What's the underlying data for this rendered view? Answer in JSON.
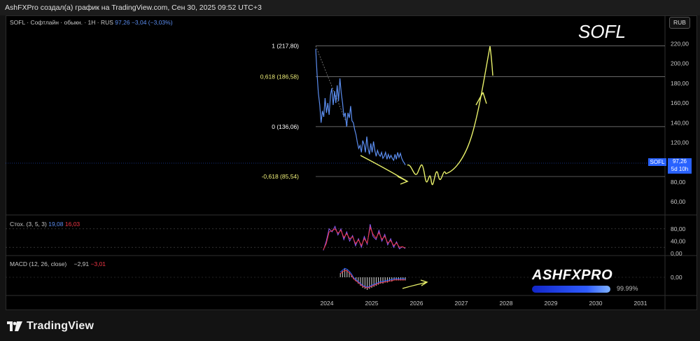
{
  "header": {
    "caption": "AshFXPro создал(а) график на TradingView.com, Сен 30, 2025 09:52 UTC+3"
  },
  "symbol_legend": {
    "label": "SOFL · Софтлайн · обыкн. · 1Н · RUS",
    "price": "97,26",
    "change": "−3,04 (−3,03%)"
  },
  "currency_button": "RUB",
  "title_overlay": "SOFL",
  "price_tag": {
    "symbol": "SOFL",
    "price": "97,26",
    "countdown": "5d 10h"
  },
  "stoch_legend": {
    "label": "Стох. (3, 5, 3)",
    "k": "19,08",
    "d": "16,03"
  },
  "macd_legend": {
    "label": "MACD (12, 26, close)",
    "v1": "−2,91",
    "v2": "−3,01"
  },
  "brand": {
    "name": "ASHFXPRO",
    "percent": "99.99%"
  },
  "footer": {
    "logo_text": "TradingView"
  },
  "colors": {
    "price_line": "#5b8def",
    "fib_extension": "#f0f07a",
    "forecast": "#e8f06a",
    "stoch_k": "#8b5cf6",
    "stoch_d": "#f23645"
  },
  "chart_data": [
    {
      "type": "line",
      "panel": "price",
      "x_ticks": [
        "2024",
        "2025",
        "2026",
        "2027",
        "2028",
        "2029",
        "2030",
        "2031"
      ],
      "y_ticks": [
        "220,00",
        "200,00",
        "180,00",
        "160,00",
        "140,00",
        "120,00",
        "100,00",
        "80,00",
        "60,00"
      ],
      "ylim": [
        48,
        236
      ],
      "series": [
        {
          "values": [
            [
              2023.75,
              215
            ],
            [
              2023.78,
              190
            ],
            [
              2023.81,
              170
            ],
            [
              2023.84,
              158
            ],
            [
              2023.87,
              140
            ],
            [
              2023.9,
              152
            ],
            [
              2023.93,
              146
            ],
            [
              2023.96,
              165
            ],
            [
              2023.99,
              150
            ],
            [
              2024.02,
              160
            ],
            [
              2024.05,
              148
            ],
            [
              2024.08,
              168
            ],
            [
              2024.11,
              175
            ],
            [
              2024.14,
              158
            ],
            [
              2024.17,
              172
            ],
            [
              2024.2,
              160
            ],
            [
              2024.23,
              178
            ],
            [
              2024.26,
              162
            ],
            [
              2024.29,
              185
            ],
            [
              2024.32,
              170
            ],
            [
              2024.35,
              160
            ],
            [
              2024.38,
              146
            ],
            [
              2024.41,
              150
            ],
            [
              2024.44,
              136
            ],
            [
              2024.47,
              150
            ],
            [
              2024.5,
              145
            ],
            [
              2024.53,
              157
            ],
            [
              2024.56,
              142
            ],
            [
              2024.59,
              140
            ],
            [
              2024.62,
              133
            ],
            [
              2024.65,
              128
            ],
            [
              2024.68,
              120
            ],
            [
              2024.71,
              114
            ],
            [
              2024.74,
              117
            ],
            [
              2024.77,
              110
            ],
            [
              2024.8,
              122
            ],
            [
              2024.83,
              118
            ],
            [
              2024.86,
              110
            ],
            [
              2024.89,
              126
            ],
            [
              2024.92,
              114
            ],
            [
              2024.95,
              108
            ],
            [
              2024.98,
              119
            ],
            [
              2025.01,
              110
            ],
            [
              2025.04,
              121
            ],
            [
              2025.07,
              112
            ],
            [
              2025.1,
              106
            ],
            [
              2025.13,
              112
            ],
            [
              2025.16,
              108
            ],
            [
              2025.19,
              106
            ],
            [
              2025.22,
              110
            ],
            [
              2025.25,
              104
            ],
            [
              2025.28,
              106
            ],
            [
              2025.31,
              110
            ],
            [
              2025.34,
              103
            ],
            [
              2025.37,
              108
            ],
            [
              2025.4,
              104
            ],
            [
              2025.43,
              107
            ],
            [
              2025.46,
              104
            ],
            [
              2025.49,
              102
            ],
            [
              2025.52,
              108
            ],
            [
              2025.55,
              103
            ],
            [
              2025.58,
              110
            ],
            [
              2025.61,
              105
            ],
            [
              2025.64,
              109
            ],
            [
              2025.67,
              104
            ],
            [
              2025.7,
              101
            ],
            [
              2025.73,
              99
            ],
            [
              2025.75,
              97.26
            ]
          ]
        }
      ],
      "fib_levels": [
        {
          "label": "1 (217,80)",
          "value": 217.8
        },
        {
          "label": "0,618 (186,58)",
          "value": 186.58
        },
        {
          "label": "0 (136,06)",
          "value": 136.06
        },
        {
          "label": "-0,618 (85,54)",
          "value": 85.54
        }
      ]
    },
    {
      "type": "line",
      "panel": "stochastic",
      "y_ticks": [
        "80,00",
        "40,00",
        "0,00"
      ],
      "ylim": [
        0,
        100
      ],
      "series": [
        {
          "values": [
            10,
            40,
            80,
            70,
            88,
            60,
            80,
            45,
            70,
            40,
            58,
            25,
            48,
            20,
            55,
            30,
            95,
            55,
            45,
            75,
            40,
            62,
            28,
            48,
            20,
            38,
            15,
            22,
            16
          ]
        },
        {
          "values": [
            12,
            32,
            70,
            74,
            80,
            66,
            75,
            52,
            64,
            48,
            54,
            32,
            44,
            26,
            48,
            34,
            85,
            62,
            50,
            68,
            46,
            56,
            34,
            42,
            26,
            34,
            20,
            22,
            18
          ]
        }
      ]
    },
    {
      "type": "bar",
      "panel": "macd",
      "y_ticks": [
        "0,00"
      ],
      "values": [
        4,
        6,
        8,
        7,
        5,
        2,
        -2,
        -4,
        -6,
        -8,
        -10,
        -11,
        -12,
        -11,
        -10,
        -9,
        -8,
        -7,
        -6,
        -6,
        -5,
        -5,
        -4,
        -4,
        -3,
        -3,
        -3,
        -3,
        -3,
        -3
      ]
    }
  ]
}
